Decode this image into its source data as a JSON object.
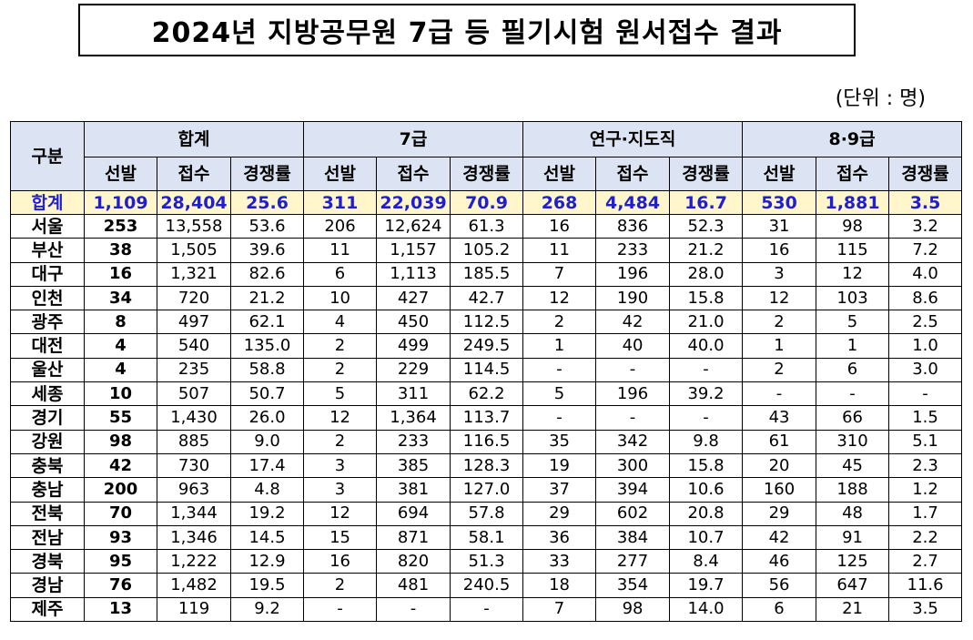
{
  "title": "2024년 지방공무원 7급 등 필기시험 원서접수 결과",
  "unit": "(단위 : 명)",
  "header": {
    "category": "구분",
    "groups": [
      "합계",
      "7급",
      "연구·지도직",
      "8·9급"
    ],
    "subcols": [
      "선발",
      "접수",
      "경쟁률"
    ]
  },
  "rows": [
    {
      "region": "합계",
      "v": [
        "1,109",
        "28,404",
        "25.6",
        "311",
        "22,039",
        "70.9",
        "268",
        "4,484",
        "16.7",
        "530",
        "1,881",
        "3.5"
      ]
    },
    {
      "region": "서울",
      "v": [
        "253",
        "13,558",
        "53.6",
        "206",
        "12,624",
        "61.3",
        "16",
        "836",
        "52.3",
        "31",
        "98",
        "3.2"
      ]
    },
    {
      "region": "부산",
      "v": [
        "38",
        "1,505",
        "39.6",
        "11",
        "1,157",
        "105.2",
        "11",
        "233",
        "21.2",
        "16",
        "115",
        "7.2"
      ]
    },
    {
      "region": "대구",
      "v": [
        "16",
        "1,321",
        "82.6",
        "6",
        "1,113",
        "185.5",
        "7",
        "196",
        "28.0",
        "3",
        "12",
        "4.0"
      ]
    },
    {
      "region": "인천",
      "v": [
        "34",
        "720",
        "21.2",
        "10",
        "427",
        "42.7",
        "12",
        "190",
        "15.8",
        "12",
        "103",
        "8.6"
      ]
    },
    {
      "region": "광주",
      "v": [
        "8",
        "497",
        "62.1",
        "4",
        "450",
        "112.5",
        "2",
        "42",
        "21.0",
        "2",
        "5",
        "2.5"
      ]
    },
    {
      "region": "대전",
      "v": [
        "4",
        "540",
        "135.0",
        "2",
        "499",
        "249.5",
        "1",
        "40",
        "40.0",
        "1",
        "1",
        "1.0"
      ]
    },
    {
      "region": "울산",
      "v": [
        "4",
        "235",
        "58.8",
        "2",
        "229",
        "114.5",
        "-",
        "-",
        "-",
        "2",
        "6",
        "3.0"
      ]
    },
    {
      "region": "세종",
      "v": [
        "10",
        "507",
        "50.7",
        "5",
        "311",
        "62.2",
        "5",
        "196",
        "39.2",
        "-",
        "-",
        "-"
      ]
    },
    {
      "region": "경기",
      "v": [
        "55",
        "1,430",
        "26.0",
        "12",
        "1,364",
        "113.7",
        "-",
        "-",
        "-",
        "43",
        "66",
        "1.5"
      ]
    },
    {
      "region": "강원",
      "v": [
        "98",
        "885",
        "9.0",
        "2",
        "233",
        "116.5",
        "35",
        "342",
        "9.8",
        "61",
        "310",
        "5.1"
      ]
    },
    {
      "region": "충북",
      "v": [
        "42",
        "730",
        "17.4",
        "3",
        "385",
        "128.3",
        "19",
        "300",
        "15.8",
        "20",
        "45",
        "2.3"
      ]
    },
    {
      "region": "충남",
      "v": [
        "200",
        "963",
        "4.8",
        "3",
        "381",
        "127.0",
        "37",
        "394",
        "10.6",
        "160",
        "188",
        "1.2"
      ]
    },
    {
      "region": "전북",
      "v": [
        "70",
        "1,344",
        "19.2",
        "12",
        "694",
        "57.8",
        "29",
        "602",
        "20.8",
        "29",
        "48",
        "1.7"
      ]
    },
    {
      "region": "전남",
      "v": [
        "93",
        "1,346",
        "14.5",
        "15",
        "871",
        "58.1",
        "36",
        "384",
        "10.7",
        "42",
        "91",
        "2.2"
      ]
    },
    {
      "region": "경북",
      "v": [
        "95",
        "1,222",
        "12.9",
        "16",
        "820",
        "51.3",
        "33",
        "277",
        "8.4",
        "46",
        "125",
        "2.7"
      ]
    },
    {
      "region": "경남",
      "v": [
        "76",
        "1,482",
        "19.5",
        "2",
        "481",
        "240.5",
        "18",
        "354",
        "19.7",
        "56",
        "647",
        "11.6"
      ]
    },
    {
      "region": "제주",
      "v": [
        "13",
        "119",
        "9.2",
        "-",
        "-",
        "-",
        "7",
        "98",
        "14.0",
        "6",
        "21",
        "3.5"
      ]
    }
  ]
}
